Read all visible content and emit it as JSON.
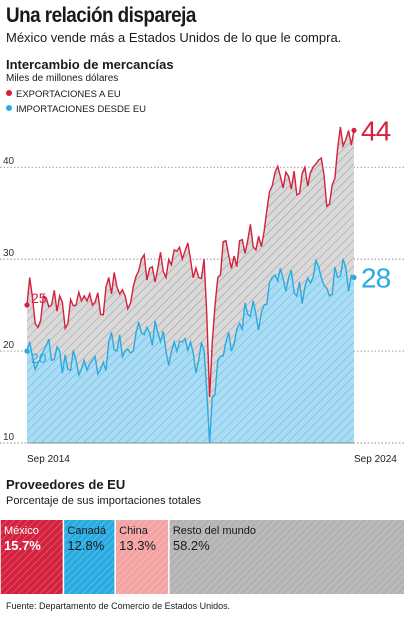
{
  "header": {
    "title": "Una relación dispareja",
    "subtitle": "México vende más a Estados Unidos de lo que le compra."
  },
  "trade": {
    "section_title": "Intercambio de mercancías",
    "unit": "Miles de millones dólares",
    "legend": [
      {
        "label": "EXPORTACIONES A EU",
        "color": "#d4213d"
      },
      {
        "label": "IMPORTACIONES DESDE EU",
        "color": "#29abe2"
      }
    ],
    "start_label": "Sep 2014",
    "end_label": "Sep 2024"
  },
  "suppliers": {
    "section_title": "Proveedores de EU",
    "subtitle": "Porcentaje de sus importaciones totales"
  },
  "source": "Fuente: Departamento de Comercio de Estados Unidos.",
  "colors": {
    "exports": "#d4213d",
    "imports": "#29abe2",
    "exports_fill": "#d9d9d9",
    "imports_fill": "#a9dcf5",
    "grid": "#666666"
  },
  "chart_data": [
    {
      "type": "line",
      "title": "Intercambio de mercancías",
      "ylabel": "Miles de millones dólares",
      "ylim": [
        10,
        46
      ],
      "yticks": [
        10,
        20,
        30,
        40
      ],
      "x_range": [
        "2014-09",
        "2024-09"
      ],
      "x_tick_labels": [
        "Sep 2014",
        "Sep 2024"
      ],
      "grid": "horizontal dotted",
      "legend_position": "top-left",
      "series": [
        {
          "name": "EXPORTACIONES A EU",
          "start_value": 25,
          "end_value": 44,
          "keypoints": [
            [
              "2014-09",
              25
            ],
            [
              "2014-10",
              28
            ],
            [
              "2014-12",
              23
            ],
            [
              "2015-03",
              26
            ],
            [
              "2015-06",
              25
            ],
            [
              "2015-09",
              26
            ],
            [
              "2015-12",
              23
            ],
            [
              "2016-03",
              25
            ],
            [
              "2016-06",
              26
            ],
            [
              "2016-09",
              25
            ],
            [
              "2016-12",
              24
            ],
            [
              "2017-03",
              28
            ],
            [
              "2017-06",
              27
            ],
            [
              "2017-09",
              26
            ],
            [
              "2017-12",
              27
            ],
            [
              "2018-03",
              30
            ],
            [
              "2018-06",
              29
            ],
            [
              "2018-09",
              29
            ],
            [
              "2018-12",
              28
            ],
            [
              "2019-03",
              31
            ],
            [
              "2019-06",
              30
            ],
            [
              "2019-09",
              30
            ],
            [
              "2019-12",
              28
            ],
            [
              "2020-02",
              30
            ],
            [
              "2020-04",
              15
            ],
            [
              "2020-05",
              21
            ],
            [
              "2020-07",
              28
            ],
            [
              "2020-10",
              32
            ],
            [
              "2020-12",
              29
            ],
            [
              "2021-03",
              32
            ],
            [
              "2021-06",
              32
            ],
            [
              "2021-09",
              31
            ],
            [
              "2021-12",
              33
            ],
            [
              "2022-03",
              38
            ],
            [
              "2022-06",
              39
            ],
            [
              "2022-09",
              39
            ],
            [
              "2022-12",
              37
            ],
            [
              "2023-03",
              40
            ],
            [
              "2023-06",
              40
            ],
            [
              "2023-09",
              41
            ],
            [
              "2023-12",
              36
            ],
            [
              "2024-03",
              42
            ],
            [
              "2024-06",
              43
            ],
            [
              "2024-09",
              44
            ]
          ]
        },
        {
          "name": "IMPORTACIONES DESDE EU",
          "start_value": 20,
          "end_value": 28,
          "keypoints": [
            [
              "2014-09",
              20
            ],
            [
              "2014-10",
              21
            ],
            [
              "2014-12",
              18
            ],
            [
              "2015-03",
              20
            ],
            [
              "2015-06",
              19
            ],
            [
              "2015-09",
              20
            ],
            [
              "2015-12",
              18
            ],
            [
              "2016-03",
              19
            ],
            [
              "2016-06",
              19
            ],
            [
              "2016-09",
              19
            ],
            [
              "2016-12",
              18
            ],
            [
              "2017-03",
              21
            ],
            [
              "2017-06",
              20
            ],
            [
              "2017-09",
              20
            ],
            [
              "2017-12",
              20
            ],
            [
              "2018-03",
              22
            ],
            [
              "2018-06",
              22
            ],
            [
              "2018-09",
              22
            ],
            [
              "2018-12",
              20
            ],
            [
              "2019-03",
              21
            ],
            [
              "2019-06",
              21
            ],
            [
              "2019-09",
              21
            ],
            [
              "2019-12",
              19
            ],
            [
              "2020-02",
              20
            ],
            [
              "2020-04",
              10
            ],
            [
              "2020-05",
              15
            ],
            [
              "2020-07",
              19
            ],
            [
              "2020-10",
              21
            ],
            [
              "2020-12",
              20
            ],
            [
              "2021-03",
              23
            ],
            [
              "2021-06",
              24
            ],
            [
              "2021-09",
              24
            ],
            [
              "2021-12",
              25
            ],
            [
              "2022-03",
              28
            ],
            [
              "2022-06",
              29
            ],
            [
              "2022-09",
              28
            ],
            [
              "2022-12",
              26
            ],
            [
              "2023-03",
              27
            ],
            [
              "2023-06",
              28
            ],
            [
              "2023-09",
              28
            ],
            [
              "2023-12",
              26
            ],
            [
              "2024-03",
              28
            ],
            [
              "2024-06",
              29
            ],
            [
              "2024-09",
              28
            ]
          ]
        }
      ]
    },
    {
      "type": "bar",
      "orientation": "horizontal-stacked",
      "title": "Proveedores de EU",
      "subtitle": "Porcentaje de sus importaciones totales",
      "categories": [
        "México",
        "Canadá",
        "China",
        "Resto del mundo"
      ],
      "values": [
        15.7,
        12.8,
        13.3,
        58.2
      ],
      "value_labels": [
        "15.7%",
        "12.8%",
        "13.3%",
        "58.2%"
      ],
      "colors": [
        "#d4213d",
        "#29abe2",
        "#f4a3a3",
        "#b3b3b3"
      ]
    }
  ]
}
